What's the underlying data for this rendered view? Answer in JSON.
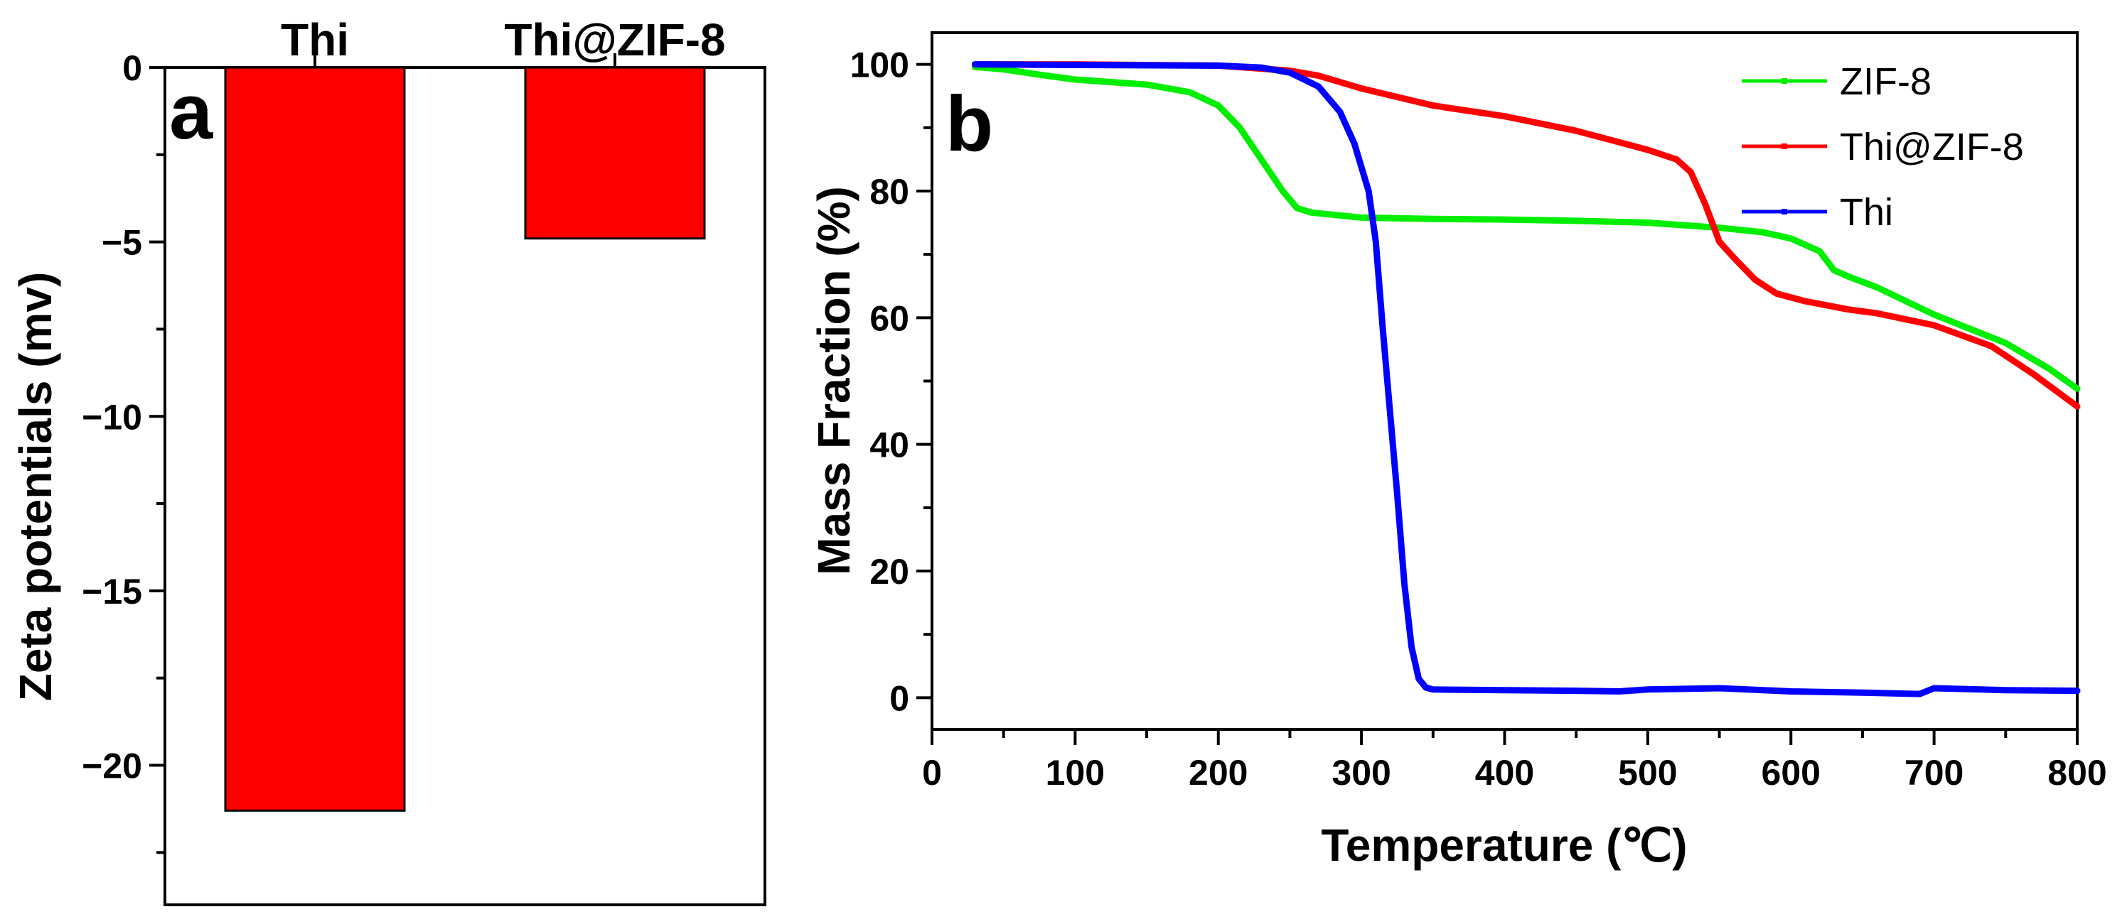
{
  "chart_data": [
    {
      "panel": "a",
      "type": "bar",
      "categories": [
        "Thi",
        "Thi@ZIF-8"
      ],
      "values": [
        -21.3,
        -4.9
      ],
      "bar_color": "#ff0000",
      "ylabel": "Zeta potentials (mv)",
      "ylim": [
        -24,
        0
      ],
      "yticks": [
        0,
        -5,
        -10,
        -15,
        -20
      ],
      "ytick_labels": [
        "0",
        "−5",
        "−10",
        "−15",
        "−20"
      ],
      "category_axis": "top"
    },
    {
      "panel": "b",
      "type": "line",
      "xlabel": "Temperature (℃)",
      "ylabel": "Mass Fraction (%)",
      "xlim": [
        0,
        800
      ],
      "ylim": [
        -5,
        105
      ],
      "xticks": [
        0,
        100,
        200,
        300,
        400,
        500,
        600,
        700,
        800
      ],
      "yticks": [
        0,
        20,
        40,
        60,
        80,
        100
      ],
      "legend_position": "top-right",
      "series": [
        {
          "name": "ZIF-8",
          "color": "#00ee00",
          "points": [
            [
              30,
              99.6
            ],
            [
              50,
              99.2
            ],
            [
              80,
              98.2
            ],
            [
              100,
              97.6
            ],
            [
              150,
              96.8
            ],
            [
              180,
              95.6
            ],
            [
              200,
              93.5
            ],
            [
              215,
              90
            ],
            [
              230,
              85
            ],
            [
              245,
              80
            ],
            [
              255,
              77.3
            ],
            [
              265,
              76.6
            ],
            [
              300,
              75.8
            ],
            [
              350,
              75.6
            ],
            [
              400,
              75.5
            ],
            [
              450,
              75.3
            ],
            [
              500,
              75.0
            ],
            [
              550,
              74.2
            ],
            [
              580,
              73.5
            ],
            [
              600,
              72.5
            ],
            [
              620,
              70.5
            ],
            [
              630,
              67.5
            ],
            [
              640,
              66.5
            ],
            [
              660,
              64.8
            ],
            [
              700,
              60.5
            ],
            [
              750,
              56.0
            ],
            [
              780,
              52
            ],
            [
              800,
              48.8
            ]
          ]
        },
        {
          "name": "Thi@ZIF-8",
          "color": "#ff0000",
          "points": [
            [
              30,
              100
            ],
            [
              100,
              100
            ],
            [
              200,
              99.8
            ],
            [
              250,
              99
            ],
            [
              270,
              98.2
            ],
            [
              300,
              96.2
            ],
            [
              350,
              93.5
            ],
            [
              400,
              91.8
            ],
            [
              450,
              89.5
            ],
            [
              500,
              86.5
            ],
            [
              520,
              85
            ],
            [
              530,
              83
            ],
            [
              540,
              78
            ],
            [
              550,
              72
            ],
            [
              560,
              69.5
            ],
            [
              575,
              66
            ],
            [
              590,
              63.8
            ],
            [
              610,
              62.6
            ],
            [
              640,
              61.3
            ],
            [
              660,
              60.7
            ],
            [
              700,
              58.8
            ],
            [
              740,
              55.5
            ],
            [
              770,
              51
            ],
            [
              800,
              46
            ]
          ]
        },
        {
          "name": "Thi",
          "color": "#0000ff",
          "points": [
            [
              30,
              100
            ],
            [
              100,
              99.9
            ],
            [
              200,
              99.8
            ],
            [
              230,
              99.5
            ],
            [
              250,
              98.7
            ],
            [
              270,
              96.5
            ],
            [
              285,
              92.5
            ],
            [
              295,
              87.5
            ],
            [
              305,
              80
            ],
            [
              310,
              72
            ],
            [
              315,
              58
            ],
            [
              320,
              45
            ],
            [
              325,
              32
            ],
            [
              330,
              18
            ],
            [
              335,
              8
            ],
            [
              340,
              3
            ],
            [
              345,
              1.6
            ],
            [
              350,
              1.3
            ],
            [
              400,
              1.2
            ],
            [
              450,
              1.1
            ],
            [
              480,
              1.0
            ],
            [
              500,
              1.3
            ],
            [
              550,
              1.5
            ],
            [
              600,
              1.0
            ],
            [
              650,
              0.8
            ],
            [
              690,
              0.6
            ],
            [
              700,
              1.5
            ],
            [
              750,
              1.2
            ],
            [
              800,
              1.1
            ]
          ]
        }
      ]
    }
  ],
  "panels": {
    "a_letter": "a",
    "b_letter": "b"
  }
}
